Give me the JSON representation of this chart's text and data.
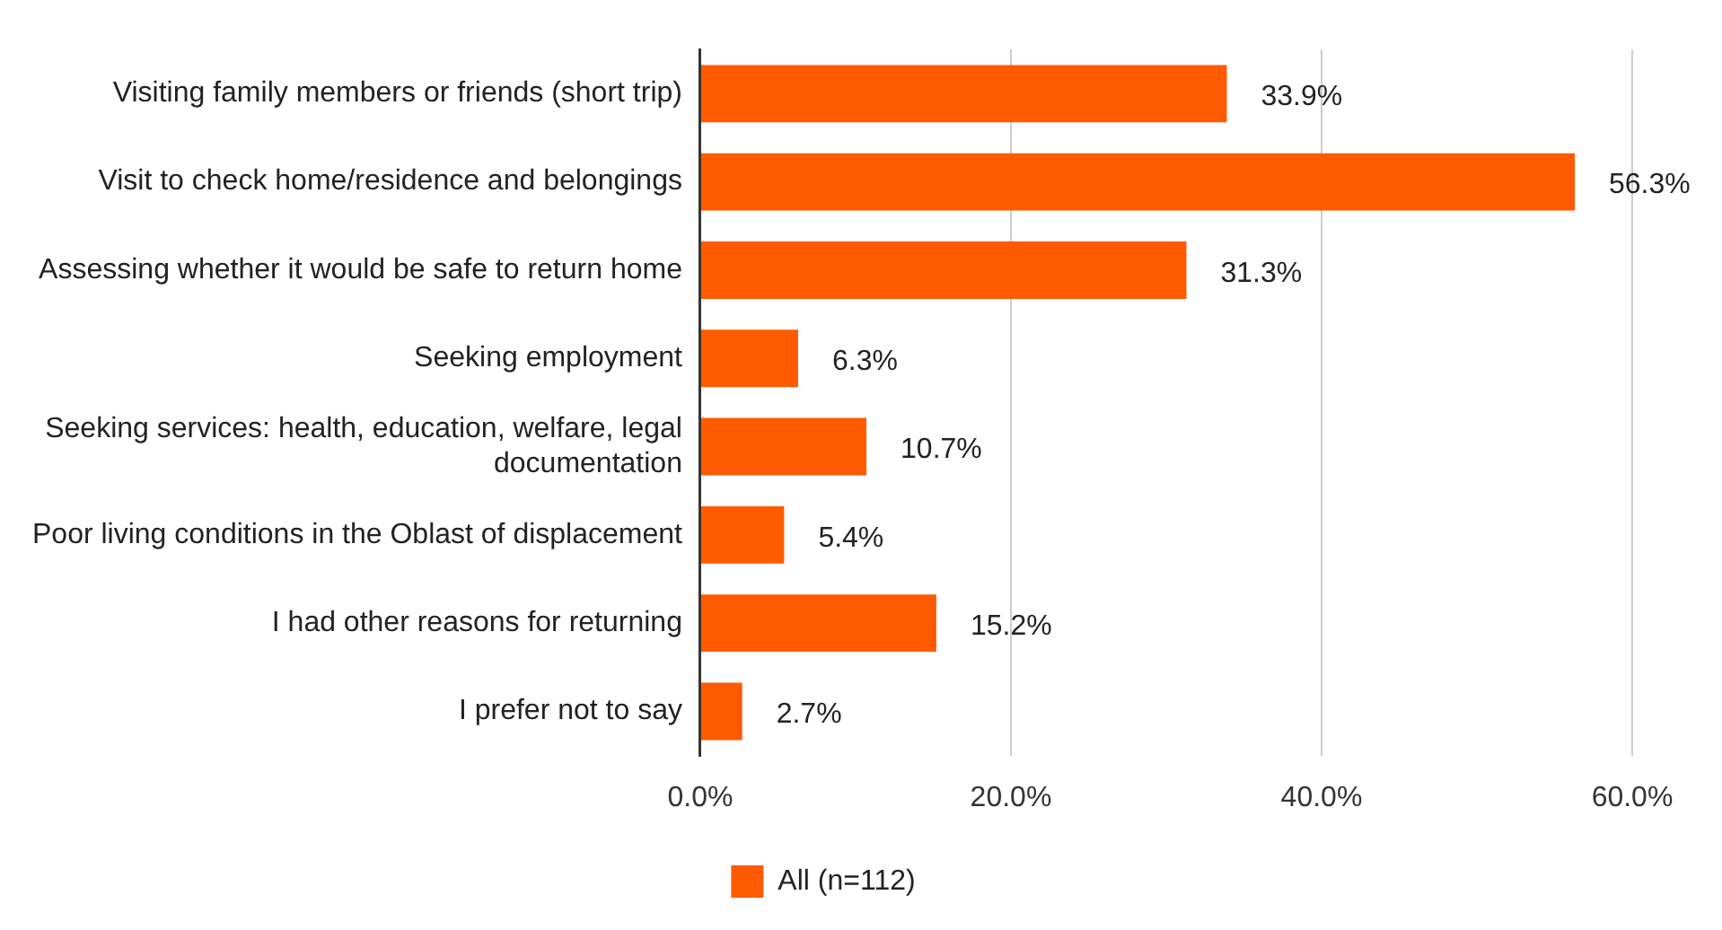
{
  "chart_data": {
    "type": "bar",
    "orientation": "horizontal",
    "categories": [
      "Visiting family members or friends (short trip)",
      "Visit to check home/residence and belongings",
      "Assessing whether it would be safe to return home",
      "Seeking employment",
      "Seeking services: health, education, welfare, legal documentation",
      "Poor living conditions in the Oblast of displacement",
      "I had other reasons for returning",
      "I prefer not to say"
    ],
    "series": [
      {
        "name": "All (n=112)",
        "color": "#ff5a00",
        "values": [
          33.9,
          56.3,
          31.3,
          6.3,
          10.7,
          5.4,
          15.2,
          2.7
        ],
        "value_labels": [
          "33.9%",
          "56.3%",
          "31.3%",
          "6.3%",
          "10.7%",
          "5.4%",
          "15.2%",
          "2.7%"
        ]
      }
    ],
    "xlim": [
      0,
      60
    ],
    "xticks": [
      {
        "value": 0,
        "label": "0.0%"
      },
      {
        "value": 20,
        "label": "20.0%"
      },
      {
        "value": 40,
        "label": "40.0%"
      },
      {
        "value": 60,
        "label": "60.0%"
      }
    ],
    "grid": "x",
    "legend": "bottom"
  }
}
